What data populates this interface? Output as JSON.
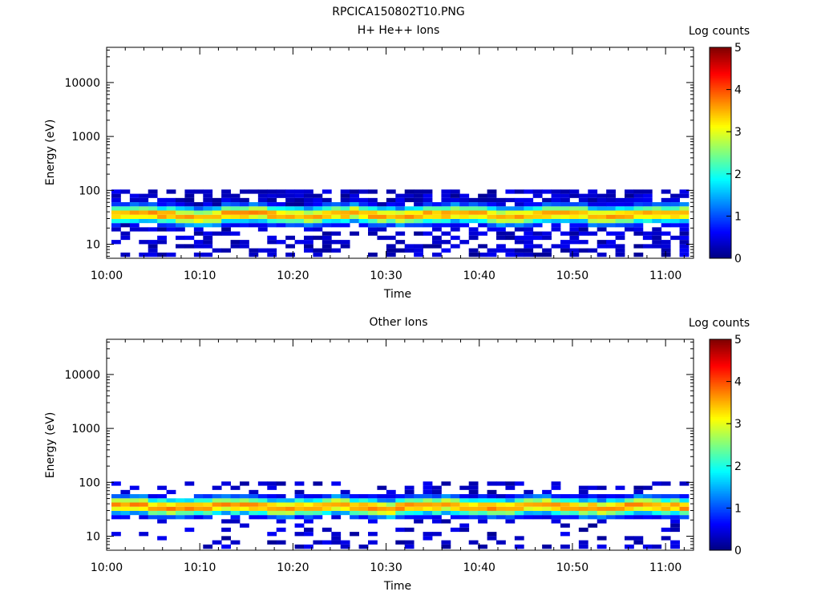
{
  "figure": {
    "title": "RPCICA150802T10.PNG"
  },
  "colors": {
    "colormap": [
      "#00007f",
      "#0000ff",
      "#007fff",
      "#00ffff",
      "#7fff7f",
      "#ffff00",
      "#ff7f00",
      "#ff0000",
      "#7f0000"
    ],
    "axis": "#000000",
    "background": "#ffffff"
  },
  "chart_data": [
    {
      "type": "heatmap",
      "title": "H+ He++ Ions",
      "xlabel": "Time",
      "ylabel": "Energy (eV)",
      "x_ticks": [
        "10:00",
        "10:10",
        "10:20",
        "10:30",
        "10:40",
        "10:50",
        "11:00"
      ],
      "x_range": [
        "10:00",
        "11:03"
      ],
      "y_scale": "log",
      "y_ticks": [
        10,
        100,
        1000,
        10000
      ],
      "y_tick_labels": [
        "10",
        "100",
        "1000",
        "10000"
      ],
      "y_range": [
        5.5,
        45000
      ],
      "colorbar": {
        "label": "Log counts",
        "range": [
          0,
          5
        ],
        "tick_labels": [
          "0",
          "1",
          "2",
          "3",
          "4",
          "5"
        ]
      },
      "time_bins": 63,
      "energy_bins_eV": [
        6.4,
        7.7,
        9.2,
        11,
        13.2,
        15.8,
        18.9,
        22.6,
        27,
        32.3,
        38.6,
        46.2,
        55.2,
        66,
        79,
        94.5
      ],
      "peak_energy_eV": 35,
      "peak_log_counts": 3.6,
      "upper_cutoff_eV": 95
    },
    {
      "type": "heatmap",
      "title": "Other Ions",
      "xlabel": "Time",
      "ylabel": "Energy (eV)",
      "x_ticks": [
        "10:00",
        "10:10",
        "10:20",
        "10:30",
        "10:40",
        "10:50",
        "11:00"
      ],
      "x_range": [
        "10:00",
        "11:03"
      ],
      "y_scale": "log",
      "y_ticks": [
        10,
        100,
        1000,
        10000
      ],
      "y_tick_labels": [
        "10",
        "100",
        "1000",
        "10000"
      ],
      "y_range": [
        5.5,
        45000
      ],
      "colorbar": {
        "label": "Log counts",
        "range": [
          0,
          5
        ],
        "tick_labels": [
          "0",
          "1",
          "2",
          "3",
          "4",
          "5"
        ]
      },
      "time_bins": 63,
      "energy_bins_eV": [
        6.4,
        7.7,
        9.2,
        11,
        13.2,
        15.8,
        18.9,
        22.6,
        27,
        32.3,
        38.6,
        46.2,
        55.2,
        66,
        79,
        94.5
      ],
      "peak_energy_eV": 35,
      "peak_log_counts": 3.7,
      "upper_cutoff_eV": 95
    }
  ]
}
